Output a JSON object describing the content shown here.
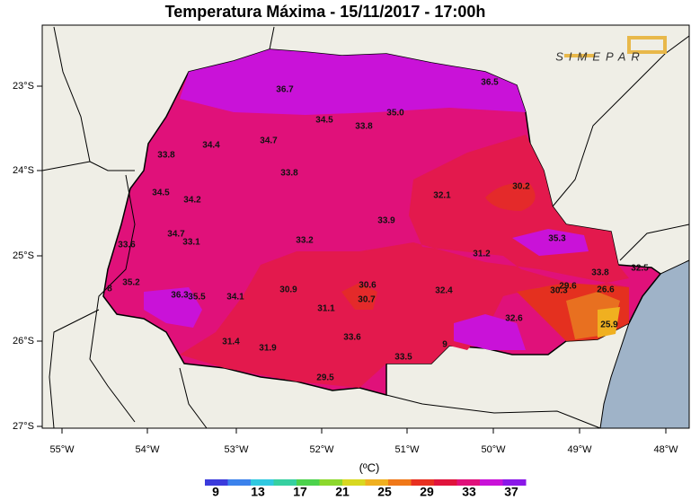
{
  "title": "Temperatura Máxima - 15/11/2017 - 17:00h",
  "logo": "SIMEPAR",
  "lon_ticks": [
    "55°W",
    "54°W",
    "53°W",
    "52°W",
    "51°W",
    "50°W",
    "49°W",
    "48°W"
  ],
  "lat_ticks": [
    "23°S",
    "24°S",
    "25°S",
    "26°S",
    "27°S"
  ],
  "stations": [
    "36.7",
    "36.5",
    "34.5",
    "35.0",
    "33.8",
    "33.8",
    "34.4",
    "34.7",
    "33.8",
    "34.5",
    "34.2",
    "32.1",
    "30.2",
    "33.9",
    "34.7",
    "33.1",
    "33.2",
    "33.6",
    "35.3",
    "31.2",
    "35.2",
    "33.8",
    "32.5",
    "8",
    "36.3",
    "35.5",
    "34.1",
    "30.9",
    "30.6",
    "30.7",
    "32.4",
    "29.6",
    "30.3",
    "26.6",
    "31.1",
    "32.6",
    "25.9",
    "31.4",
    "31.9",
    "33.6",
    "9",
    "33.5",
    "29.5"
  ],
  "colorbar": {
    "unit": "(ºC)",
    "ticks": [
      "9",
      "13",
      "17",
      "21",
      "25",
      "29",
      "33",
      "37"
    ]
  }
}
